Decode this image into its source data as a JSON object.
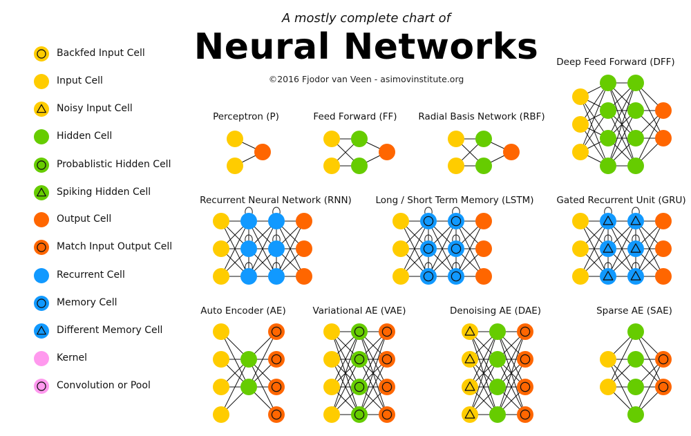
{
  "header": {
    "subtitle": "A mostly complete chart of",
    "title": "Neural Networks",
    "credit": "©2016 Fjodor van Veen - asimovinstitute.org"
  },
  "colors": {
    "input": "#FFCC00",
    "hidden": "#66CC00",
    "output": "#FF6600",
    "recurrent": "#1199FF",
    "kernel": "#FF99EE",
    "line": "#111111"
  },
  "legend": [
    {
      "label": "Backfed Input Cell",
      "color": "input",
      "symbol": "circle"
    },
    {
      "label": "Input Cell",
      "color": "input",
      "symbol": "none"
    },
    {
      "label": "Noisy Input Cell",
      "color": "input",
      "symbol": "triangle"
    },
    {
      "label": "Hidden Cell",
      "color": "hidden",
      "symbol": "none"
    },
    {
      "label": "Probablistic Hidden Cell",
      "color": "hidden",
      "symbol": "circle"
    },
    {
      "label": "Spiking Hidden Cell",
      "color": "hidden",
      "symbol": "triangle"
    },
    {
      "label": "Output Cell",
      "color": "output",
      "symbol": "none"
    },
    {
      "label": "Match Input Output Cell",
      "color": "output",
      "symbol": "circle"
    },
    {
      "label": "Recurrent Cell",
      "color": "recurrent",
      "symbol": "none"
    },
    {
      "label": "Memory Cell",
      "color": "recurrent",
      "symbol": "circle"
    },
    {
      "label": "Different Memory Cell",
      "color": "recurrent",
      "symbol": "triangle"
    },
    {
      "label": "Kernel",
      "color": "kernel",
      "symbol": "none"
    },
    {
      "label": "Convolution or Pool",
      "color": "kernel",
      "symbol": "circle"
    }
  ],
  "networks": [
    {
      "name": "Perceptron (P)",
      "layers": [
        {
          "n": 2,
          "color": "input",
          "symbol": "none"
        },
        {
          "n": 1,
          "color": "output",
          "symbol": "none"
        }
      ]
    },
    {
      "name": "Feed Forward (FF)",
      "layers": [
        {
          "n": 2,
          "color": "input",
          "symbol": "none"
        },
        {
          "n": 2,
          "color": "hidden",
          "symbol": "none"
        },
        {
          "n": 1,
          "color": "output",
          "symbol": "none"
        }
      ]
    },
    {
      "name": "Radial Basis Network (RBF)",
      "layers": [
        {
          "n": 2,
          "color": "input",
          "symbol": "none"
        },
        {
          "n": 2,
          "color": "hidden",
          "symbol": "none"
        },
        {
          "n": 1,
          "color": "output",
          "symbol": "none"
        }
      ]
    },
    {
      "name": "Deep Feed Forward (DFF)",
      "layers": [
        {
          "n": 3,
          "color": "input",
          "symbol": "none"
        },
        {
          "n": 4,
          "color": "hidden",
          "symbol": "none"
        },
        {
          "n": 4,
          "color": "hidden",
          "symbol": "none"
        },
        {
          "n": 2,
          "color": "output",
          "symbol": "none"
        }
      ]
    },
    {
      "name": "Recurrent Neural Network (RNN)",
      "recurrent": true,
      "layers": [
        {
          "n": 3,
          "color": "input",
          "symbol": "none"
        },
        {
          "n": 3,
          "color": "recurrent",
          "symbol": "none"
        },
        {
          "n": 3,
          "color": "recurrent",
          "symbol": "none"
        },
        {
          "n": 3,
          "color": "output",
          "symbol": "none"
        }
      ]
    },
    {
      "name": "Long / Short Term Memory (LSTM)",
      "recurrent": true,
      "layers": [
        {
          "n": 3,
          "color": "input",
          "symbol": "none"
        },
        {
          "n": 3,
          "color": "recurrent",
          "symbol": "circle"
        },
        {
          "n": 3,
          "color": "recurrent",
          "symbol": "circle"
        },
        {
          "n": 3,
          "color": "output",
          "symbol": "none"
        }
      ]
    },
    {
      "name": "Gated Recurrent Unit (GRU)",
      "recurrent": true,
      "layers": [
        {
          "n": 3,
          "color": "input",
          "symbol": "none"
        },
        {
          "n": 3,
          "color": "recurrent",
          "symbol": "triangle"
        },
        {
          "n": 3,
          "color": "recurrent",
          "symbol": "triangle"
        },
        {
          "n": 3,
          "color": "output",
          "symbol": "none"
        }
      ]
    },
    {
      "name": "Auto Encoder (AE)",
      "layers": [
        {
          "n": 4,
          "color": "input",
          "symbol": "none"
        },
        {
          "n": 2,
          "color": "hidden",
          "symbol": "none"
        },
        {
          "n": 4,
          "color": "output",
          "symbol": "circle"
        }
      ]
    },
    {
      "name": "Variational AE (VAE)",
      "layers": [
        {
          "n": 4,
          "color": "input",
          "symbol": "none"
        },
        {
          "n": 4,
          "color": "hidden",
          "symbol": "circle"
        },
        {
          "n": 4,
          "color": "output",
          "symbol": "circle"
        }
      ]
    },
    {
      "name": "Denoising AE (DAE)",
      "layers": [
        {
          "n": 4,
          "color": "input",
          "symbol": "triangle"
        },
        {
          "n": 4,
          "color": "hidden",
          "symbol": "none"
        },
        {
          "n": 4,
          "color": "output",
          "symbol": "circle"
        }
      ]
    },
    {
      "name": "Sparse AE (SAE)",
      "layers": [
        {
          "n": 2,
          "color": "input",
          "symbol": "none"
        },
        {
          "n": 4,
          "color": "hidden",
          "symbol": "none"
        },
        {
          "n": 2,
          "color": "output",
          "symbol": "circle"
        }
      ]
    }
  ]
}
